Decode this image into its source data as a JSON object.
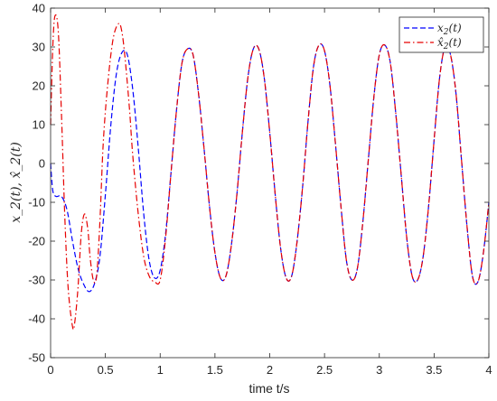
{
  "chart_data": {
    "type": "line",
    "title": "",
    "xlabel": "time t/s",
    "ylabel": "x_2(t), x̂_2(t)",
    "xlim": [
      0,
      4
    ],
    "ylim": [
      -50,
      40
    ],
    "xticks": [
      "0",
      "0.5",
      "1",
      "1.5",
      "2",
      "2.5",
      "3",
      "3.5",
      "4"
    ],
    "yticks": [
      "40",
      "30",
      "20",
      "10",
      "0",
      "-10",
      "-20",
      "-30",
      "-40",
      "-50"
    ],
    "grid": false,
    "legend_position": "top-right",
    "series": [
      {
        "name": "x2(t)",
        "legend_main": "x",
        "legend_sub": "2",
        "legend_tail": "(t)",
        "color": "#0000ff",
        "style": "dashed",
        "x": [
          0,
          0.02,
          0.05,
          0.1,
          0.15,
          0.2,
          0.25,
          0.3,
          0.35,
          0.4,
          0.45,
          0.5,
          0.55,
          0.6,
          0.65,
          0.7,
          0.75,
          0.8,
          0.85,
          0.9,
          0.95,
          1.0,
          1.05,
          1.1,
          1.15,
          1.2,
          1.25,
          1.3,
          1.35,
          1.4,
          1.45,
          1.5,
          1.55,
          1.6,
          1.65,
          1.7,
          1.75,
          1.8,
          1.85,
          1.9,
          1.95,
          2.0,
          2.05,
          2.1,
          2.15,
          2.2,
          2.25,
          2.3,
          2.35,
          2.4,
          2.45,
          2.5,
          2.55,
          2.6,
          2.65,
          2.7,
          2.75,
          2.8,
          2.85,
          2.9,
          2.95,
          3.0,
          3.05,
          3.1,
          3.15,
          3.2,
          3.25,
          3.3,
          3.35,
          3.4,
          3.45,
          3.5,
          3.55,
          3.6,
          3.65,
          3.7,
          3.75,
          3.8,
          3.85,
          3.9,
          3.95,
          4.0
        ],
        "y": [
          0,
          -7,
          -8.5,
          -8.5,
          -12,
          -20,
          -27,
          -31,
          -33,
          -31,
          -24,
          -8,
          10,
          23,
          28.5,
          28,
          19,
          4,
          -13,
          -25,
          -29.5,
          -27.5,
          -18,
          -2,
          14,
          26,
          29.5,
          28,
          18,
          4,
          -11,
          -23,
          -29.5,
          -29,
          -21,
          -8,
          8,
          22,
          29.5,
          29.5,
          22,
          8,
          -8,
          -22,
          -29.5,
          -29,
          -20,
          -6,
          11,
          25,
          30.5,
          29,
          20,
          5,
          -11,
          -25,
          -30,
          -27,
          -15,
          1,
          17,
          28,
          30.5,
          26,
          13,
          -3,
          -19,
          -29,
          -30,
          -24,
          -11,
          6,
          22,
          30,
          28,
          18,
          1,
          -16,
          -29,
          -30.5,
          -23,
          -10
        ]
      },
      {
        "name": "x̂2(t)",
        "legend_main": "x̂",
        "legend_sub": "2",
        "legend_tail": "(t)",
        "color": "#e60000",
        "style": "dashdot",
        "x": [
          0,
          0.02,
          0.04,
          0.07,
          0.1,
          0.13,
          0.16,
          0.2,
          0.22,
          0.25,
          0.28,
          0.31,
          0.34,
          0.36,
          0.39,
          0.42,
          0.45,
          0.48,
          0.52,
          0.57,
          0.62,
          0.65,
          0.68,
          0.72,
          0.75,
          0.8,
          0.85,
          0.9,
          0.95,
          1.0,
          1.05,
          1.1,
          1.15,
          1.2,
          1.25,
          1.3,
          1.35,
          1.4,
          1.45,
          1.5,
          1.55,
          1.6,
          1.65,
          1.7,
          1.75,
          1.8,
          1.85,
          1.9,
          1.95,
          2.0,
          2.05,
          2.1,
          2.15,
          2.2,
          2.25,
          2.3,
          2.35,
          2.4,
          2.45,
          2.5,
          2.55,
          2.6,
          2.65,
          2.7,
          2.75,
          2.8,
          2.85,
          2.9,
          2.95,
          3.0,
          3.05,
          3.1,
          3.15,
          3.2,
          3.25,
          3.3,
          3.35,
          3.4,
          3.45,
          3.5,
          3.55,
          3.6,
          3.65,
          3.7,
          3.75,
          3.8,
          3.85,
          3.9,
          3.95,
          4.0
        ],
        "y": [
          10,
          30,
          38,
          34,
          12,
          -14,
          -32,
          -42,
          -41,
          -32,
          -18,
          -13,
          -17,
          -24,
          -30,
          -29,
          -15,
          5,
          20,
          32,
          36,
          34,
          27,
          14,
          2,
          -13,
          -24,
          -29,
          -30.5,
          -30,
          -19,
          -2,
          14,
          26,
          29.5,
          28,
          18,
          4,
          -11,
          -23,
          -29.5,
          -29,
          -21,
          -8,
          8,
          22,
          29.5,
          29.5,
          22,
          8,
          -8,
          -22,
          -29.5,
          -29,
          -20,
          -6,
          11,
          25,
          30.5,
          29,
          20,
          5,
          -11,
          -25,
          -30,
          -27,
          -15,
          1,
          17,
          28,
          30.5,
          26,
          13,
          -3,
          -19,
          -29,
          -30,
          -24,
          -11,
          6,
          22,
          30,
          28,
          18,
          1,
          -16,
          -29,
          -30.5,
          -23,
          -10
        ]
      }
    ]
  }
}
